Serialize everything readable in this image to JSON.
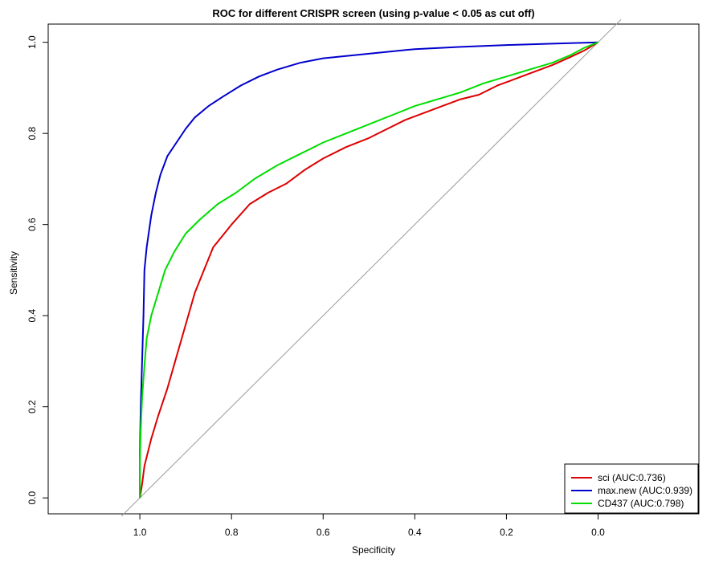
{
  "chart_data": {
    "type": "line",
    "title": "ROC for different CRISPR screen (using p-value < 0.05 as cut off)",
    "xlabel": "Specificity",
    "ylabel": "Sensitivity",
    "xlim": [
      1.2,
      -0.22
    ],
    "ylim": [
      -0.035,
      1.04
    ],
    "x_reversed": true,
    "x_ticks": [
      {
        "value": 1.0,
        "label": "1.0"
      },
      {
        "value": 0.8,
        "label": "0.8"
      },
      {
        "value": 0.6,
        "label": "0.6"
      },
      {
        "value": 0.4,
        "label": "0.4"
      },
      {
        "value": 0.2,
        "label": "0.2"
      },
      {
        "value": 0.0,
        "label": "0.0"
      }
    ],
    "y_ticks": [
      {
        "value": 0.0,
        "label": "0.0"
      },
      {
        "value": 0.2,
        "label": "0.2"
      },
      {
        "value": 0.4,
        "label": "0.4"
      },
      {
        "value": 0.6,
        "label": "0.6"
      },
      {
        "value": 0.8,
        "label": "0.8"
      },
      {
        "value": 1.0,
        "label": "1.0"
      }
    ],
    "grid": false,
    "legend_position": "bottom-right",
    "reference_line": {
      "from": [
        1.04,
        -0.04
      ],
      "to": [
        -0.05,
        1.05
      ],
      "color": "#999999"
    },
    "series": [
      {
        "name": "sci (AUC:0.736)",
        "color": "#dd0000",
        "points": [
          [
            1.0,
            0.0
          ],
          [
            0.995,
            0.03
          ],
          [
            0.99,
            0.07
          ],
          [
            0.975,
            0.13
          ],
          [
            0.96,
            0.18
          ],
          [
            0.94,
            0.24
          ],
          [
            0.92,
            0.31
          ],
          [
            0.9,
            0.38
          ],
          [
            0.88,
            0.45
          ],
          [
            0.86,
            0.5
          ],
          [
            0.84,
            0.55
          ],
          [
            0.8,
            0.6
          ],
          [
            0.76,
            0.645
          ],
          [
            0.72,
            0.67
          ],
          [
            0.68,
            0.69
          ],
          [
            0.64,
            0.72
          ],
          [
            0.6,
            0.745
          ],
          [
            0.55,
            0.77
          ],
          [
            0.5,
            0.79
          ],
          [
            0.46,
            0.81
          ],
          [
            0.42,
            0.83
          ],
          [
            0.38,
            0.845
          ],
          [
            0.34,
            0.86
          ],
          [
            0.3,
            0.875
          ],
          [
            0.26,
            0.885
          ],
          [
            0.22,
            0.905
          ],
          [
            0.18,
            0.92
          ],
          [
            0.14,
            0.935
          ],
          [
            0.1,
            0.95
          ],
          [
            0.06,
            0.968
          ],
          [
            0.03,
            0.982
          ],
          [
            0.0,
            1.0
          ]
        ]
      },
      {
        "name": "max.new (AUC:0.939)",
        "color": "#0000cc",
        "points": [
          [
            1.0,
            0.0
          ],
          [
            1.0,
            0.1
          ],
          [
            0.998,
            0.2
          ],
          [
            0.995,
            0.3
          ],
          [
            0.992,
            0.4
          ],
          [
            0.99,
            0.5
          ],
          [
            0.985,
            0.55
          ],
          [
            0.975,
            0.62
          ],
          [
            0.965,
            0.67
          ],
          [
            0.955,
            0.71
          ],
          [
            0.94,
            0.75
          ],
          [
            0.92,
            0.78
          ],
          [
            0.9,
            0.81
          ],
          [
            0.88,
            0.835
          ],
          [
            0.85,
            0.86
          ],
          [
            0.82,
            0.88
          ],
          [
            0.78,
            0.905
          ],
          [
            0.74,
            0.925
          ],
          [
            0.7,
            0.94
          ],
          [
            0.65,
            0.955
          ],
          [
            0.6,
            0.965
          ],
          [
            0.55,
            0.97
          ],
          [
            0.5,
            0.975
          ],
          [
            0.45,
            0.98
          ],
          [
            0.4,
            0.985
          ],
          [
            0.3,
            0.99
          ],
          [
            0.2,
            0.994
          ],
          [
            0.1,
            0.997
          ],
          [
            0.0,
            1.0
          ]
        ]
      },
      {
        "name": "CD437 (AUC:0.798)",
        "color": "#00dd00",
        "points": [
          [
            1.0,
            0.0
          ],
          [
            1.0,
            0.08
          ],
          [
            0.998,
            0.15
          ],
          [
            0.995,
            0.22
          ],
          [
            0.99,
            0.29
          ],
          [
            0.985,
            0.35
          ],
          [
            0.975,
            0.4
          ],
          [
            0.96,
            0.45
          ],
          [
            0.945,
            0.5
          ],
          [
            0.925,
            0.54
          ],
          [
            0.9,
            0.58
          ],
          [
            0.87,
            0.61
          ],
          [
            0.83,
            0.645
          ],
          [
            0.79,
            0.67
          ],
          [
            0.75,
            0.7
          ],
          [
            0.7,
            0.73
          ],
          [
            0.65,
            0.755
          ],
          [
            0.6,
            0.78
          ],
          [
            0.55,
            0.8
          ],
          [
            0.5,
            0.82
          ],
          [
            0.45,
            0.84
          ],
          [
            0.4,
            0.86
          ],
          [
            0.35,
            0.875
          ],
          [
            0.3,
            0.89
          ],
          [
            0.25,
            0.91
          ],
          [
            0.2,
            0.925
          ],
          [
            0.15,
            0.94
          ],
          [
            0.1,
            0.955
          ],
          [
            0.06,
            0.972
          ],
          [
            0.03,
            0.988
          ],
          [
            0.0,
            1.0
          ]
        ]
      }
    ]
  }
}
